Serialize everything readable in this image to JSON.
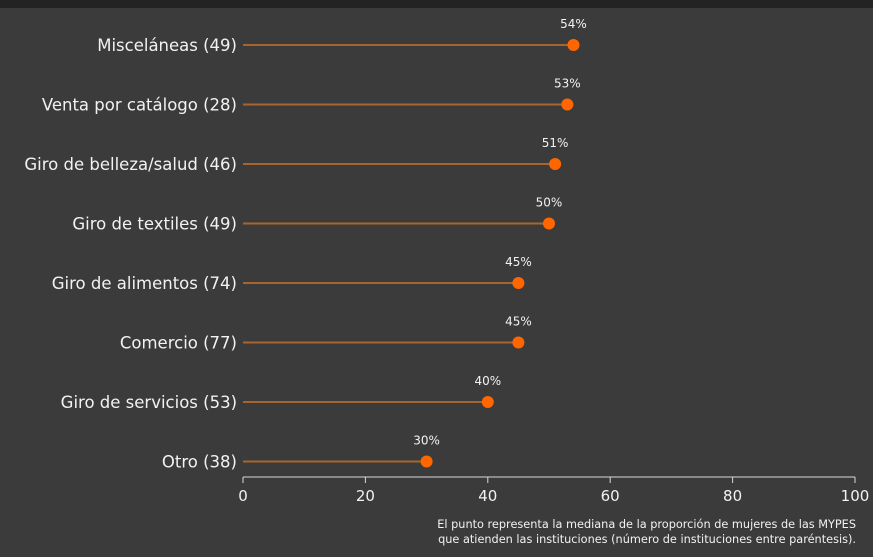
{
  "colors": {
    "background": "#3b3b3b",
    "stem": "#a8642e",
    "dot": "#ff6600",
    "axis": "#d9d9d9",
    "text": "#f2f2f2"
  },
  "chart_data": {
    "type": "lollipop",
    "categories": [
      "Misceláneas (49)",
      "Venta por catálogo (28)",
      "Giro de belleza/salud (46)",
      "Giro de textiles (49)",
      "Giro de alimentos (74)",
      "Comercio (77)",
      "Giro de servicios (53)",
      "Otro (38)"
    ],
    "values": [
      54,
      53,
      51,
      50,
      45,
      45,
      40,
      30
    ],
    "value_labels": [
      "54%",
      "53%",
      "51%",
      "50%",
      "45%",
      "45%",
      "40%",
      "30%"
    ],
    "xlim": [
      0,
      100
    ],
    "xticks": [
      0,
      20,
      40,
      60,
      80,
      100
    ],
    "grid": false,
    "note": [
      "El punto representa la mediana de la proporción de mujeres de las MYPES",
      "que atienden las instituciones (número de instituciones entre paréntesis)."
    ]
  }
}
